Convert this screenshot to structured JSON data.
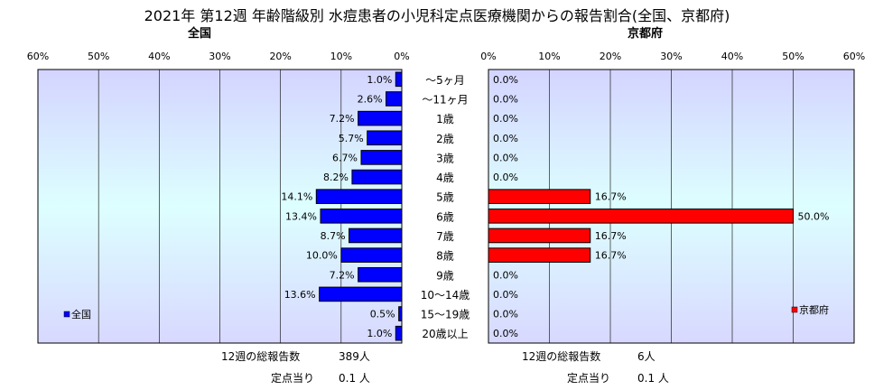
{
  "title": "2021年 第12週 年齢階級別 水痘患者の小児科定点医療機関からの報告割合(全国、京都府)",
  "chart_data": [
    {
      "type": "bar",
      "orientation": "horizontal",
      "direction": "right-to-left",
      "title": "全国",
      "legend": "全国",
      "legend_position": "bottom-left",
      "color": "#0000ff",
      "xlim": [
        0,
        60
      ],
      "ticks": [
        "60%",
        "50%",
        "40%",
        "30%",
        "20%",
        "10%",
        "0%"
      ],
      "value_labels": [
        "1.0%",
        "2.6%",
        "7.2%",
        "5.7%",
        "6.7%",
        "8.2%",
        "14.1%",
        "13.4%",
        "8.7%",
        "10.0%",
        "7.2%",
        "13.6%",
        "0.5%",
        "1.0%"
      ],
      "values": [
        1.0,
        2.6,
        7.2,
        5.7,
        6.7,
        8.2,
        14.1,
        13.4,
        8.7,
        10.0,
        7.2,
        13.6,
        0.5,
        1.0
      ]
    },
    {
      "type": "bar",
      "orientation": "horizontal",
      "direction": "left-to-right",
      "title": "京都府",
      "legend": "京都府",
      "legend_position": "bottom-right",
      "color": "#ff0000",
      "xlim": [
        0,
        60
      ],
      "ticks": [
        "0%",
        "10%",
        "20%",
        "30%",
        "40%",
        "50%",
        "60%"
      ],
      "value_labels": [
        "0.0%",
        "0.0%",
        "0.0%",
        "0.0%",
        "0.0%",
        "0.0%",
        "16.7%",
        "50.0%",
        "16.7%",
        "16.7%",
        "0.0%",
        "0.0%",
        "0.0%",
        "0.0%"
      ],
      "values": [
        0,
        0,
        0,
        0,
        0,
        0,
        16.7,
        50.0,
        16.7,
        16.7,
        0,
        0,
        0,
        0
      ]
    }
  ],
  "categories": [
    "～5ヶ月",
    "～11ヶ月",
    "1歳",
    "2歳",
    "3歳",
    "4歳",
    "5歳",
    "6歳",
    "7歳",
    "8歳",
    "9歳",
    "10～14歳",
    "15～19歳",
    "20歳以上"
  ],
  "footer": {
    "national": {
      "total_label": "12週の総報告数",
      "total_value": "389人",
      "per_label": "定点当り",
      "per_value": "0.1 人"
    },
    "kyoto": {
      "total_label": "12週の総報告数",
      "total_value": "6人",
      "per_label": "定点当り",
      "per_value": "0.1 人"
    }
  },
  "colors": {
    "plot_top": "#d4d4ff",
    "plot_mid": "#ddffff",
    "plot_bottom": "#d8d8ff",
    "grid": "#000000"
  }
}
